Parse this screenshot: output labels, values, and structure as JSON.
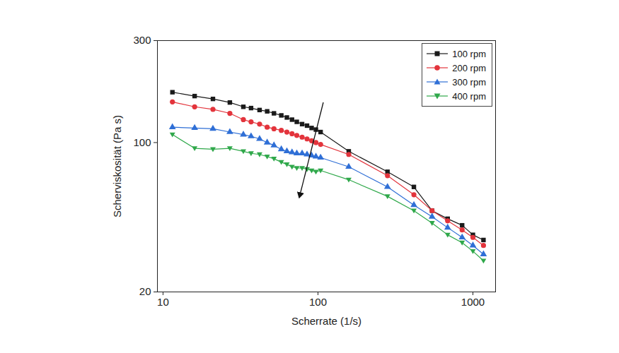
{
  "chart_data": {
    "type": "line",
    "xlabel": "Scherrate (1/s)",
    "ylabel": "Scherviskosität (Pa s)",
    "x": [
      11.5,
      16,
      21,
      27,
      33,
      37,
      42,
      47,
      52,
      58,
      63,
      68,
      73,
      79,
      85,
      91,
      97,
      104,
      158,
      281,
      416,
      545,
      687,
      852,
      1000,
      1170
    ],
    "series": [
      {
        "name": "100 rpm",
        "color": "#1a1a1a",
        "marker": "square",
        "values": [
          172,
          165,
          160,
          154,
          147,
          145,
          142,
          140,
          137,
          134,
          131,
          128,
          125,
          122,
          120,
          117,
          115,
          112,
          91,
          73,
          62,
          48,
          44,
          41,
          37,
          35
        ]
      },
      {
        "name": "200 rpm",
        "color": "#e3343c",
        "marker": "circle",
        "values": [
          155,
          147,
          143,
          137,
          128,
          125,
          122,
          118,
          116,
          114,
          112,
          110,
          108,
          106,
          104,
          102,
          100,
          98,
          88,
          70,
          57,
          48,
          43,
          39,
          36,
          33
        ]
      },
      {
        "name": "300 rpm",
        "color": "#2f6fd6",
        "marker": "triangle-up",
        "values": [
          118,
          117,
          116,
          112,
          109,
          107,
          104,
          100,
          97,
          93,
          91,
          90,
          89,
          89,
          88,
          87,
          86,
          85,
          77,
          62,
          51,
          45,
          40,
          36,
          33,
          30
        ]
      },
      {
        "name": "400 rpm",
        "color": "#2fa84a",
        "marker": "triangle-down",
        "values": [
          109,
          94,
          93,
          94,
          91,
          89,
          88,
          86,
          84,
          81,
          79,
          77,
          76,
          76,
          75,
          74,
          73,
          74,
          67,
          56,
          48,
          42,
          37,
          34,
          31,
          28
        ]
      }
    ],
    "xlim": [
      9.2,
      1400
    ],
    "ylim": [
      20,
      300
    ],
    "xticks": [
      10,
      100,
      1000
    ],
    "yticks": [
      20,
      100,
      300
    ],
    "log": true,
    "grid": false,
    "legend": "top-right"
  }
}
